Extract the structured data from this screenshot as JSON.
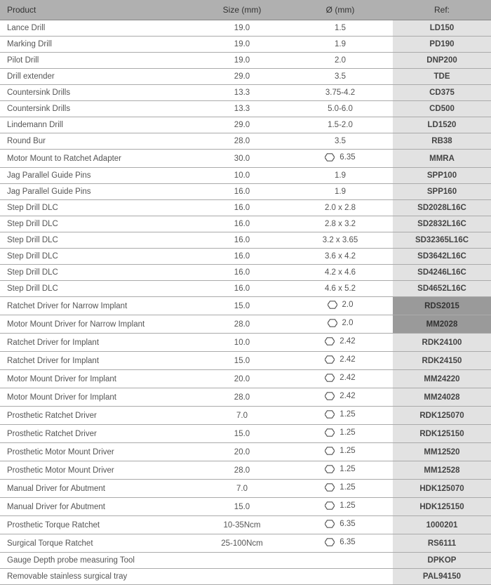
{
  "headers": {
    "product": "Product",
    "size": "Size (mm)",
    "diameter": "Ø (mm)",
    "ref": "Ref:"
  },
  "hex_color": "#555555",
  "rows": [
    {
      "product": "Lance Drill",
      "size": "19.0",
      "dia": "1.5",
      "hex": false,
      "ref": "LD150",
      "dark": false
    },
    {
      "product": "Marking Drill",
      "size": "19.0",
      "dia": "1.9",
      "hex": false,
      "ref": "PD190",
      "dark": false
    },
    {
      "product": "Pilot Drill",
      "size": "19.0",
      "dia": "2.0",
      "hex": false,
      "ref": "DNP200",
      "dark": false
    },
    {
      "product": "Drill extender",
      "size": "29.0",
      "dia": "3.5",
      "hex": false,
      "ref": "TDE",
      "dark": false
    },
    {
      "product": "Countersink Drills",
      "size": "13.3",
      "dia": "3.75-4.2",
      "hex": false,
      "ref": "CD375",
      "dark": false
    },
    {
      "product": "Countersink Drills",
      "size": "13.3",
      "dia": "5.0-6.0",
      "hex": false,
      "ref": "CD500",
      "dark": false
    },
    {
      "product": "Lindemann Drill",
      "size": "29.0",
      "dia": "1.5-2.0",
      "hex": false,
      "ref": "LD1520",
      "dark": false
    },
    {
      "product": "Round Bur",
      "size": "28.0",
      "dia": "3.5",
      "hex": false,
      "ref": "RB38",
      "dark": false
    },
    {
      "product": "Motor Mount to Ratchet Adapter",
      "size": "30.0",
      "dia": "6.35",
      "hex": true,
      "ref": "MMRA",
      "dark": false
    },
    {
      "product": "Jag Parallel Guide Pins",
      "size": "10.0",
      "dia": "1.9",
      "hex": false,
      "ref": "SPP100",
      "dark": false
    },
    {
      "product": "Jag Parallel Guide Pins",
      "size": "16.0",
      "dia": "1.9",
      "hex": false,
      "ref": "SPP160",
      "dark": false
    },
    {
      "product": "Step Drill DLC",
      "size": "16.0",
      "dia": "2.0 x 2.8",
      "hex": false,
      "ref": "SD2028L16C",
      "dark": false
    },
    {
      "product": "Step Drill DLC",
      "size": "16.0",
      "dia": "2.8 x 3.2",
      "hex": false,
      "ref": "SD2832L16C",
      "dark": false
    },
    {
      "product": "Step Drill DLC",
      "size": "16.0",
      "dia": "3.2 x 3.65",
      "hex": false,
      "ref": "SD32365L16C",
      "dark": false
    },
    {
      "product": "Step Drill DLC",
      "size": "16.0",
      "dia": "3.6 x 4.2",
      "hex": false,
      "ref": "SD3642L16C",
      "dark": false
    },
    {
      "product": "Step Drill DLC",
      "size": "16.0",
      "dia": "4.2 x 4.6",
      "hex": false,
      "ref": "SD4246L16C",
      "dark": false
    },
    {
      "product": "Step Drill DLC",
      "size": "16.0",
      "dia": "4.6 x 5.2",
      "hex": false,
      "ref": "SD4652L16C",
      "dark": false
    },
    {
      "product": "Ratchet Driver for Narrow Implant",
      "size": "15.0",
      "dia": "2.0",
      "hex": true,
      "ref": "RDS2015",
      "dark": true
    },
    {
      "product": "Motor Mount Driver for Narrow Implant",
      "size": "28.0",
      "dia": "2.0",
      "hex": true,
      "ref": "MM2028",
      "dark": true
    },
    {
      "product": "Ratchet Driver for Implant",
      "size": "10.0",
      "dia": "2.42",
      "hex": true,
      "ref": "RDK24100",
      "dark": false
    },
    {
      "product": "Ratchet Driver for Implant",
      "size": "15.0",
      "dia": "2.42",
      "hex": true,
      "ref": "RDK24150",
      "dark": false
    },
    {
      "product": "Motor Mount Driver for Implant",
      "size": "20.0",
      "dia": "2.42",
      "hex": true,
      "ref": "MM24220",
      "dark": false
    },
    {
      "product": "Motor Mount Driver for Implant",
      "size": "28.0",
      "dia": "2.42",
      "hex": true,
      "ref": "MM24028",
      "dark": false
    },
    {
      "product": "Prosthetic Ratchet Driver",
      "size": "7.0",
      "dia": "1.25",
      "hex": true,
      "ref": "RDK125070",
      "dark": false
    },
    {
      "product": "Prosthetic Ratchet Driver",
      "size": "15.0",
      "dia": "1.25",
      "hex": true,
      "ref": "RDK125150",
      "dark": false
    },
    {
      "product": "Prosthetic Motor Mount Driver",
      "size": "20.0",
      "dia": "1.25",
      "hex": true,
      "ref": "MM12520",
      "dark": false
    },
    {
      "product": "Prosthetic Motor Mount Driver",
      "size": "28.0",
      "dia": "1.25",
      "hex": true,
      "ref": "MM12528",
      "dark": false
    },
    {
      "product": "Manual Driver for Abutment",
      "size": "7.0",
      "dia": "1.25",
      "hex": true,
      "ref": "HDK125070",
      "dark": false
    },
    {
      "product": "Manual Driver for Abutment",
      "size": "15.0",
      "dia": "1.25",
      "hex": true,
      "ref": "HDK125150",
      "dark": false
    },
    {
      "product": "Prosthetic Torque Ratchet",
      "size": "10-35Ncm",
      "dia": "6.35",
      "hex": true,
      "ref": "1000201",
      "dark": false
    },
    {
      "product": "Surgical Torque Ratchet",
      "size": "25-100Ncm",
      "dia": "6.35",
      "hex": true,
      "ref": "RS6111",
      "dark": false
    },
    {
      "product": "Gauge Depth probe measuring Tool",
      "size": "",
      "dia": "",
      "hex": false,
      "ref": "DPKOP",
      "dark": false
    },
    {
      "product": "Removable stainless surgical tray",
      "size": "",
      "dia": "",
      "hex": false,
      "ref": "PAL94150",
      "dark": false
    }
  ]
}
